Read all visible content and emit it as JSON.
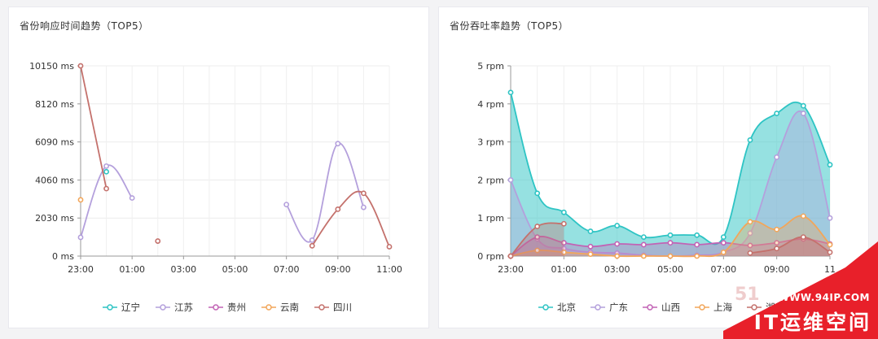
{
  "chart_data": [
    {
      "type": "line",
      "title": "省份响应时间趋势（TOP5）",
      "ylabel": "",
      "xlabel": "",
      "x_ticks": [
        "23:00",
        "01:00",
        "03:00",
        "05:00",
        "07:00",
        "09:00",
        "11:00"
      ],
      "y_ticks": [
        "0 ms",
        "2030 ms",
        "4060 ms",
        "6090 ms",
        "8120 ms",
        "10150 ms"
      ],
      "ylim": [
        0,
        10150
      ],
      "x_hours": [
        -1,
        11
      ],
      "grid": true,
      "legend_position": "bottom",
      "series": [
        {
          "name": "辽宁",
          "color": "#2ec4c4",
          "points": [
            [
              0,
              4500
            ]
          ]
        },
        {
          "name": "江苏",
          "color": "#b4a0dc",
          "points": [
            [
              -1,
              1000
            ],
            [
              0,
              4800
            ],
            [
              1,
              3100
            ],
            null,
            [
              7,
              2750
            ],
            [
              8,
              850
            ],
            [
              9,
              6000
            ],
            [
              10,
              2600
            ]
          ]
        },
        {
          "name": "贵州",
          "color": "#c263b5",
          "points": []
        },
        {
          "name": "云南",
          "color": "#f2a65a",
          "points": [
            [
              -1,
              3000
            ]
          ]
        },
        {
          "name": "四川",
          "color": "#c4716c",
          "points": [
            [
              -1,
              10150
            ],
            [
              0,
              3600
            ],
            null,
            [
              2,
              800
            ],
            null,
            [
              8,
              550
            ],
            [
              9,
              2500
            ],
            [
              10,
              3350
            ],
            [
              11,
              500
            ]
          ]
        }
      ]
    },
    {
      "type": "area",
      "title": "省份吞吐率趋势（TOP5）",
      "ylabel": "",
      "xlabel": "",
      "x_ticks": [
        "23:00",
        "01:00",
        "03:00",
        "05:00",
        "07:00",
        "09:00",
        "11"
      ],
      "y_ticks": [
        "0 rpm",
        "1 rpm",
        "2 rpm",
        "3 rpm",
        "4 rpm",
        "5 rpm"
      ],
      "ylim": [
        0,
        5
      ],
      "x_hours": [
        -1,
        11
      ],
      "grid": true,
      "legend_position": "bottom",
      "series": [
        {
          "name": "北京",
          "color": "#2ec4c4",
          "points": [
            [
              -1,
              4.3
            ],
            [
              0,
              1.65
            ],
            [
              1,
              1.15
            ],
            [
              2,
              0.65
            ],
            [
              3,
              0.8
            ],
            [
              4,
              0.5
            ],
            [
              5,
              0.55
            ],
            [
              6,
              0.55
            ],
            [
              7,
              0.5
            ],
            [
              8,
              3.05
            ],
            [
              9,
              3.75
            ],
            [
              10,
              3.95
            ],
            [
              11,
              2.4
            ]
          ]
        },
        {
          "name": "广东",
          "color": "#b4a0dc",
          "points": [
            [
              -1,
              2.0
            ],
            [
              0,
              0.45
            ],
            [
              1,
              0.2
            ],
            [
              2,
              0.1
            ],
            [
              3,
              0.08
            ],
            [
              4,
              0.02
            ],
            [
              5,
              0.0
            ],
            [
              6,
              0.02
            ],
            [
              7,
              0.1
            ],
            [
              8,
              0.6
            ],
            [
              9,
              2.6
            ],
            [
              10,
              3.75
            ],
            [
              11,
              1.0
            ]
          ]
        },
        {
          "name": "山西",
          "color": "#c263b5",
          "points": [
            [
              -1,
              0.0
            ],
            [
              0,
              0.5
            ],
            [
              1,
              0.35
            ],
            [
              2,
              0.25
            ],
            [
              3,
              0.32
            ],
            [
              4,
              0.3
            ],
            [
              5,
              0.35
            ],
            [
              6,
              0.3
            ],
            [
              7,
              0.35
            ],
            [
              8,
              0.28
            ],
            [
              9,
              0.35
            ],
            [
              10,
              0.45
            ],
            [
              11,
              0.32
            ]
          ]
        },
        {
          "name": "上海",
          "color": "#f2a65a",
          "points": [
            [
              -1,
              0.0
            ],
            [
              0,
              0.15
            ],
            [
              1,
              0.1
            ],
            [
              2,
              0.05
            ],
            [
              3,
              0.0
            ],
            [
              4,
              0.0
            ],
            [
              5,
              0.0
            ],
            [
              6,
              0.0
            ],
            [
              7,
              0.1
            ],
            [
              8,
              0.9
            ],
            [
              9,
              0.7
            ],
            [
              10,
              1.05
            ],
            [
              11,
              0.3
            ]
          ]
        },
        {
          "name": "湖",
          "color": "#c4716c",
          "points": [
            [
              -1,
              0.0
            ],
            [
              0,
              0.78
            ],
            [
              1,
              0.85
            ],
            null,
            [
              8,
              0.08
            ],
            [
              9,
              0.2
            ],
            [
              10,
              0.5
            ],
            [
              11,
              0.1
            ]
          ]
        }
      ]
    }
  ],
  "watermark": {
    "url": "WWW.94IP.COM",
    "brand": "IT运维空间",
    "faint": "51"
  }
}
